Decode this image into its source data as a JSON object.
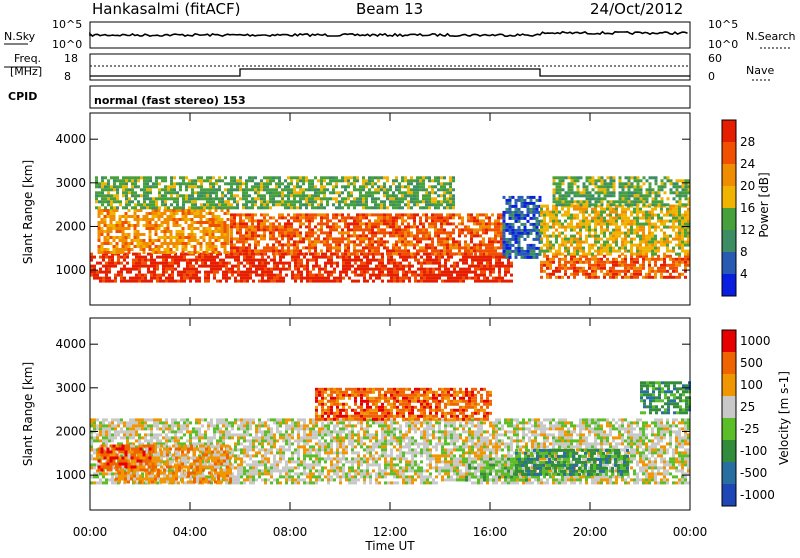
{
  "header": {
    "title": "Hankasalmi (fitACF)",
    "beam": "Beam 13",
    "date": "24/Oct/2012"
  },
  "noise_panel": {
    "left_label": "N.Sky",
    "right_label": "N.Search",
    "ticks_left": [
      "10^5",
      "10^0"
    ],
    "ticks_right": [
      "10^5",
      "10^0"
    ]
  },
  "freq_panel": {
    "left_label_1": "Freq.",
    "left_label_2": "[MHz]",
    "right_label": "Nave",
    "ticks_left": [
      "18",
      "8"
    ],
    "ticks_right": [
      "60",
      "0"
    ]
  },
  "cpid_panel": {
    "label": "CPID",
    "text": "normal (fast stereo) 153"
  },
  "x_axis": {
    "label": "Time UT",
    "ticks": [
      "00:00",
      "04:00",
      "08:00",
      "12:00",
      "16:00",
      "20:00",
      "00:00"
    ]
  },
  "colors": {
    "power": [
      "#0a1ee0",
      "#285ab4",
      "#3c8c64",
      "#46a03c",
      "#f0b400",
      "#f08c00",
      "#f05000",
      "#e61e00"
    ],
    "velocity": [
      "#e60000",
      "#f06400",
      "#f09600",
      "#c8c8c8",
      "#5abe28",
      "#328c3c",
      "#286ea0",
      "#1e46b4"
    ],
    "ground": "#bebebe"
  },
  "chart_data": [
    {
      "type": "heatmap",
      "name_ref": "power",
      "xlim": [
        0,
        24
      ],
      "ylim": [
        200,
        4600
      ],
      "ylabel": "Slant Range [km]",
      "yticks": [
        "1000",
        "2000",
        "3000",
        "4000"
      ],
      "colorbar": {
        "label": "Power [dB]",
        "range": [
          0,
          32
        ],
        "ticks": [
          "4",
          "8",
          "12",
          "16",
          "20",
          "24",
          "28"
        ]
      },
      "regions": [
        {
          "t0": 0.0,
          "t1": 16.8,
          "r0": 750,
          "r1": 1400,
          "level": 7
        },
        {
          "t0": 5.6,
          "t1": 16.5,
          "r0": 1350,
          "r1": 2300,
          "level": 6
        },
        {
          "t0": 0.3,
          "t1": 5.5,
          "r0": 1400,
          "r1": 2400,
          "level": 5
        },
        {
          "t0": 0.2,
          "t1": 14.5,
          "r0": 2400,
          "r1": 3150,
          "level": 3
        },
        {
          "t0": 16.5,
          "t1": 18.0,
          "r0": 1300,
          "r1": 2700,
          "level": 1
        },
        {
          "t0": 18.0,
          "t1": 24.0,
          "r0": 850,
          "r1": 1350,
          "level": 6
        },
        {
          "t0": 18.0,
          "t1": 24.0,
          "r0": 1350,
          "r1": 2500,
          "level": 4
        },
        {
          "t0": 18.5,
          "t1": 24.0,
          "r0": 2500,
          "r1": 3150,
          "level": 3
        }
      ]
    },
    {
      "type": "heatmap",
      "name_ref": "velocity",
      "xlim": [
        0,
        24
      ],
      "ylim": [
        200,
        4600
      ],
      "ylabel": "Slant Range [km]",
      "yticks": [
        "1000",
        "2000",
        "3000",
        "4000"
      ],
      "colorbar": {
        "label": "Velocity [m s-1]",
        "ticks": [
          "1000",
          "500",
          "100",
          "25",
          "-25",
          "-100",
          "-500",
          "-1000"
        ]
      },
      "regions": [
        {
          "t0": 0.0,
          "t1": 24.0,
          "r0": 850,
          "r1": 2300,
          "level": 3
        },
        {
          "t0": 1.0,
          "t1": 5.6,
          "r0": 850,
          "r1": 1700,
          "level": 2
        },
        {
          "t0": 0.3,
          "t1": 2.5,
          "r0": 1100,
          "r1": 1700,
          "level": 1
        },
        {
          "t0": 15.0,
          "t1": 17.5,
          "r0": 900,
          "r1": 1400,
          "level": 4
        },
        {
          "t0": 17.0,
          "t1": 21.5,
          "r0": 1000,
          "r1": 1600,
          "level": 5
        },
        {
          "t0": 9.0,
          "t1": 16.0,
          "r0": 2300,
          "r1": 3000,
          "level": 1
        },
        {
          "t0": 22.0,
          "t1": 24.0,
          "r0": 2400,
          "r1": 3150,
          "level": 5
        }
      ]
    }
  ]
}
